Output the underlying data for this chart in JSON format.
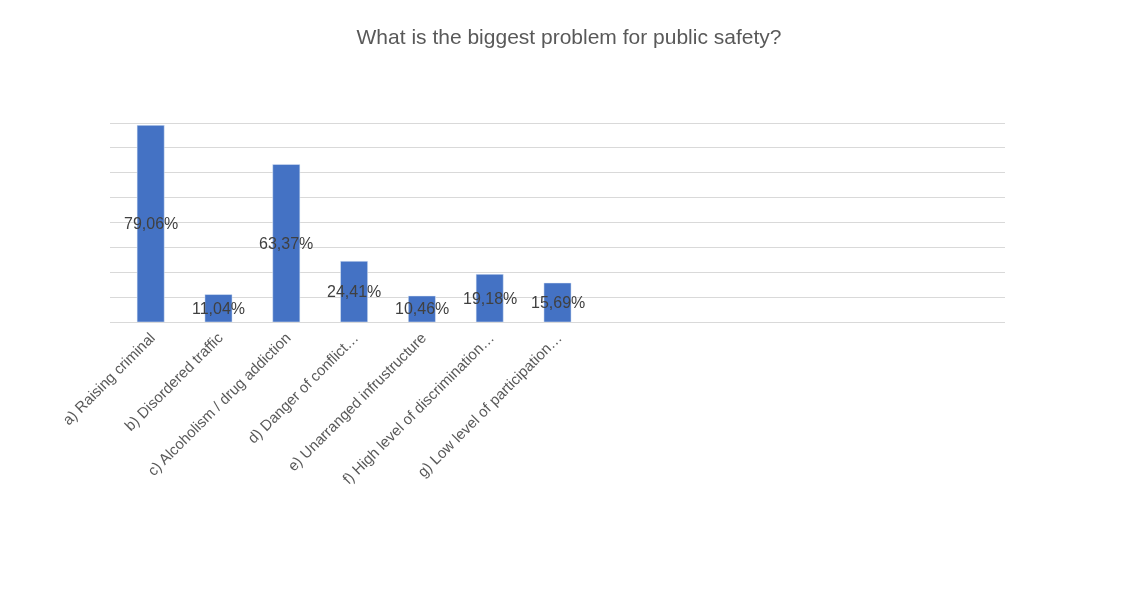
{
  "chart_data": {
    "type": "bar",
    "title": "What is the biggest problem for public safety?",
    "categories": [
      "a) Raising criminal",
      "b) Disordered traffic",
      "c) Alcoholism / drug addiction",
      "d) Danger of conflict…",
      "e) Unarranged infrustructure",
      "f) High level of discrimination…",
      "g) Low level of participation…",
      null,
      null,
      null,
      null,
      null,
      null
    ],
    "values": [
      79.06,
      11.04,
      63.37,
      24.41,
      10.46,
      19.18,
      15.69,
      null,
      null,
      null,
      null,
      null,
      null
    ],
    "value_labels": [
      "79,06%",
      "11,04%",
      "63,37%",
      "24,41%",
      "10,46%",
      "19,18%",
      "15,69%",
      null,
      null,
      null,
      null,
      null,
      null
    ],
    "color": "#4472c4",
    "grid": "y",
    "tick_labels": "x"
  }
}
